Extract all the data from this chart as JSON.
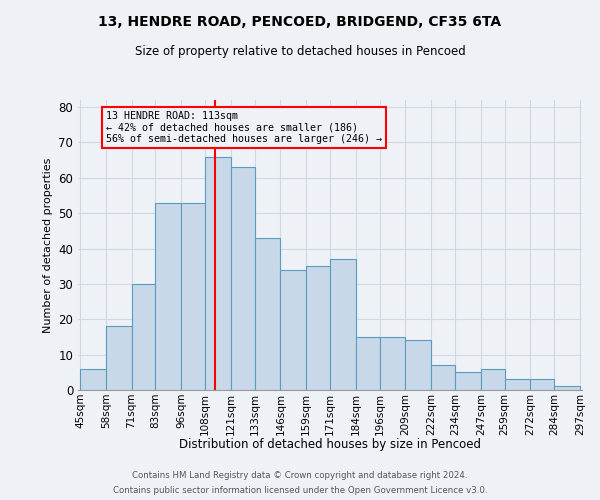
{
  "title1": "13, HENDRE ROAD, PENCOED, BRIDGEND, CF35 6TA",
  "title2": "Size of property relative to detached houses in Pencoed",
  "xlabel": "Distribution of detached houses by size in Pencoed",
  "ylabel": "Number of detached properties",
  "categories": [
    "45sqm",
    "58sqm",
    "71sqm",
    "83sqm",
    "96sqm",
    "108sqm",
    "121sqm",
    "133sqm",
    "146sqm",
    "159sqm",
    "171sqm",
    "184sqm",
    "196sqm",
    "209sqm",
    "222sqm",
    "234sqm",
    "247sqm",
    "259sqm",
    "272sqm",
    "284sqm",
    "297sqm"
  ],
  "bin_edges": [
    45,
    58,
    71,
    83,
    96,
    108,
    121,
    133,
    146,
    159,
    171,
    184,
    196,
    209,
    222,
    234,
    247,
    259,
    272,
    284,
    297
  ],
  "bar_heights": [
    6,
    18,
    30,
    53,
    53,
    66,
    63,
    43,
    34,
    35,
    37,
    15,
    15,
    14,
    7,
    5,
    6,
    3,
    3,
    1
  ],
  "bar_color": "#c8d8e8",
  "bar_edge_color": "#5a9bbf",
  "vline_x": 113,
  "vline_color": "red",
  "annotation_line1": "13 HENDRE ROAD: 113sqm",
  "annotation_line2": "← 42% of detached houses are smaller (186)",
  "annotation_line3": "56% of semi-detached houses are larger (246) →",
  "annotation_box_color": "red",
  "ylim": [
    0,
    82
  ],
  "yticks": [
    0,
    10,
    20,
    30,
    40,
    50,
    60,
    70,
    80
  ],
  "grid_color": "#d0d8e8",
  "footer1": "Contains HM Land Registry data © Crown copyright and database right 2024.",
  "footer2": "Contains public sector information licensed under the Open Government Licence v3.0.",
  "bg_color": "#eef2f7"
}
